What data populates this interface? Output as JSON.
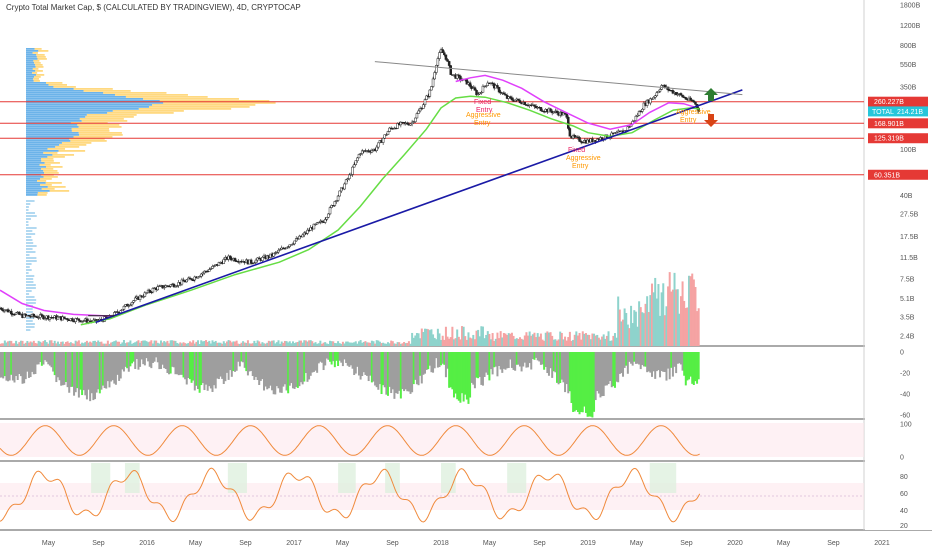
{
  "header": {
    "title": "Crypto Total Market Cap, $ (CALCULATED BY TRADINGVIEW), 4D, CRYPTOCAP"
  },
  "chart_data": {
    "type": "candlestick",
    "price_axis": {
      "scale": "log",
      "ticks": [
        {
          "label": "1800B",
          "value": 1800
        },
        {
          "label": "1200B",
          "value": 1200
        },
        {
          "label": "800B",
          "value": 800
        },
        {
          "label": "550B",
          "value": 550
        },
        {
          "label": "350B",
          "value": 350
        },
        {
          "label": "100B",
          "value": 100
        },
        {
          "label": "40B",
          "value": 40
        },
        {
          "label": "27.5B",
          "value": 27.5
        },
        {
          "label": "17.5B",
          "value": 17.5
        },
        {
          "label": "11.5B",
          "value": 11.5
        },
        {
          "label": "7.5B",
          "value": 7.5
        },
        {
          "label": "5.1B",
          "value": 5.1
        },
        {
          "label": "3.5B",
          "value": 3.5
        },
        {
          "label": "2.4B",
          "value": 2.4
        }
      ]
    },
    "time_axis": {
      "ticks": [
        "May",
        "Sep",
        "2016",
        "May",
        "Sep",
        "2017",
        "May",
        "Sep",
        "2018",
        "May",
        "Sep",
        "2019",
        "May",
        "Sep",
        "2020",
        "May",
        "Sep",
        "2021"
      ]
    },
    "price_lines": [
      {
        "label": "260.227B",
        "value": 260.227,
        "color": "#e53935"
      },
      {
        "label": "168.901B",
        "value": 168.901,
        "color": "#e53935"
      },
      {
        "label": "125.319B",
        "value": 125.319,
        "color": "#e53935"
      },
      {
        "label": "60.351B",
        "value": 60.351,
        "color": "#e53935"
      }
    ],
    "current_price": {
      "symbol": "TOTAL",
      "label": "214.21B",
      "value": 214.21,
      "color": "#26c6da"
    },
    "annotations": [
      {
        "text": "Fixed",
        "color": "#e91e63"
      },
      {
        "text": "Entry",
        "color": "#e91e63"
      },
      {
        "text": "Aggressive",
        "color": "#ff9800"
      },
      {
        "text": "Entry",
        "color": "#ff9800"
      },
      {
        "text": "Fixed",
        "color": "#e91e63"
      },
      {
        "text": "Aggressive",
        "color": "#ff9800"
      },
      {
        "text": "Entry",
        "color": "#ff9800"
      },
      {
        "text": "Aggressive",
        "color": "#ff9800"
      },
      {
        "text": "Entry",
        "color": "#ff9800"
      }
    ],
    "indicator_1": {
      "ticks": [
        "0",
        "-20",
        "-40",
        "-60"
      ]
    },
    "indicator_2": {
      "ticks": [
        "100",
        "0"
      ]
    },
    "indicator_3": {
      "ticks": [
        "80",
        "60",
        "40",
        "20"
      ]
    },
    "colors": {
      "candle_up": "#26a69a",
      "candle_down": "#ef5350",
      "ma_magenta": "#e040fb",
      "ma_green": "#66dd44",
      "trendline_blue": "#1a1aa6",
      "resistance_grey": "#888888",
      "volume_up": "#8ed3cc",
      "volume_down": "#f5a3a3",
      "hist_green": "#55ee44",
      "hist_grey": "#9e9e9e",
      "osc_orange": "#f08a3c",
      "osc_green": "#22aa22",
      "osc_red": "#cc2222"
    }
  }
}
